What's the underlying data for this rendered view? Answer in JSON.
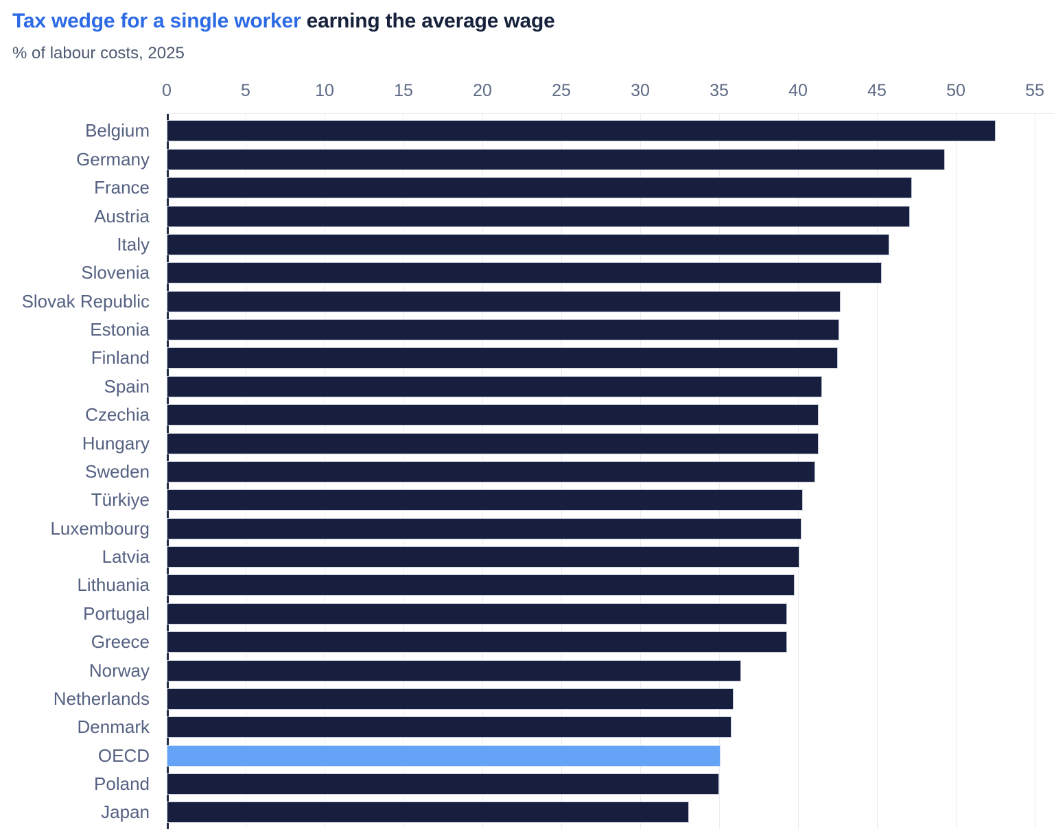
{
  "header": {
    "title_highlight": "Tax wedge for a single worker",
    "title_rest": "earning the average wage",
    "subtitle": "% of labour costs, 2025"
  },
  "chart_data": {
    "type": "bar",
    "orientation": "horizontal",
    "title": "Tax wedge for a single worker earning the average wage",
    "subtitle": "% of labour costs, 2025",
    "xlabel": "% of labour costs",
    "ylabel": "",
    "xlim": [
      0,
      55
    ],
    "xticks": [
      0,
      5,
      10,
      15,
      20,
      25,
      30,
      35,
      40,
      45,
      50,
      55
    ],
    "grid": "vertical",
    "legend": "none",
    "categories": [
      "Belgium",
      "Germany",
      "France",
      "Austria",
      "Italy",
      "Slovenia",
      "Slovak Republic",
      "Estonia",
      "Finland",
      "Spain",
      "Czechia",
      "Hungary",
      "Sweden",
      "Türkiye",
      "Luxembourg",
      "Latvia",
      "Lithuania",
      "Portugal",
      "Greece",
      "Norway",
      "Netherlands",
      "Denmark",
      "OECD",
      "Poland",
      "Japan"
    ],
    "values": [
      52.5,
      49.3,
      47.2,
      47.1,
      45.8,
      45.3,
      42.7,
      42.6,
      42.5,
      41.5,
      41.3,
      41.3,
      41.1,
      40.3,
      40.2,
      40.1,
      39.8,
      39.3,
      39.3,
      36.4,
      35.9,
      35.8,
      35.1,
      35.0,
      33.1
    ],
    "highlight_category": "OECD",
    "colors": {
      "bar": "#181f3e",
      "highlight_bar": "#64a3f5",
      "title_highlight": "#2d6be5",
      "title_rest": "#16213c",
      "axis_line": "#232b45",
      "gridline": "#ebecf0",
      "category_label": "#556182",
      "tick_label": "#5d6a85",
      "subtitle": "#4c5971"
    }
  }
}
